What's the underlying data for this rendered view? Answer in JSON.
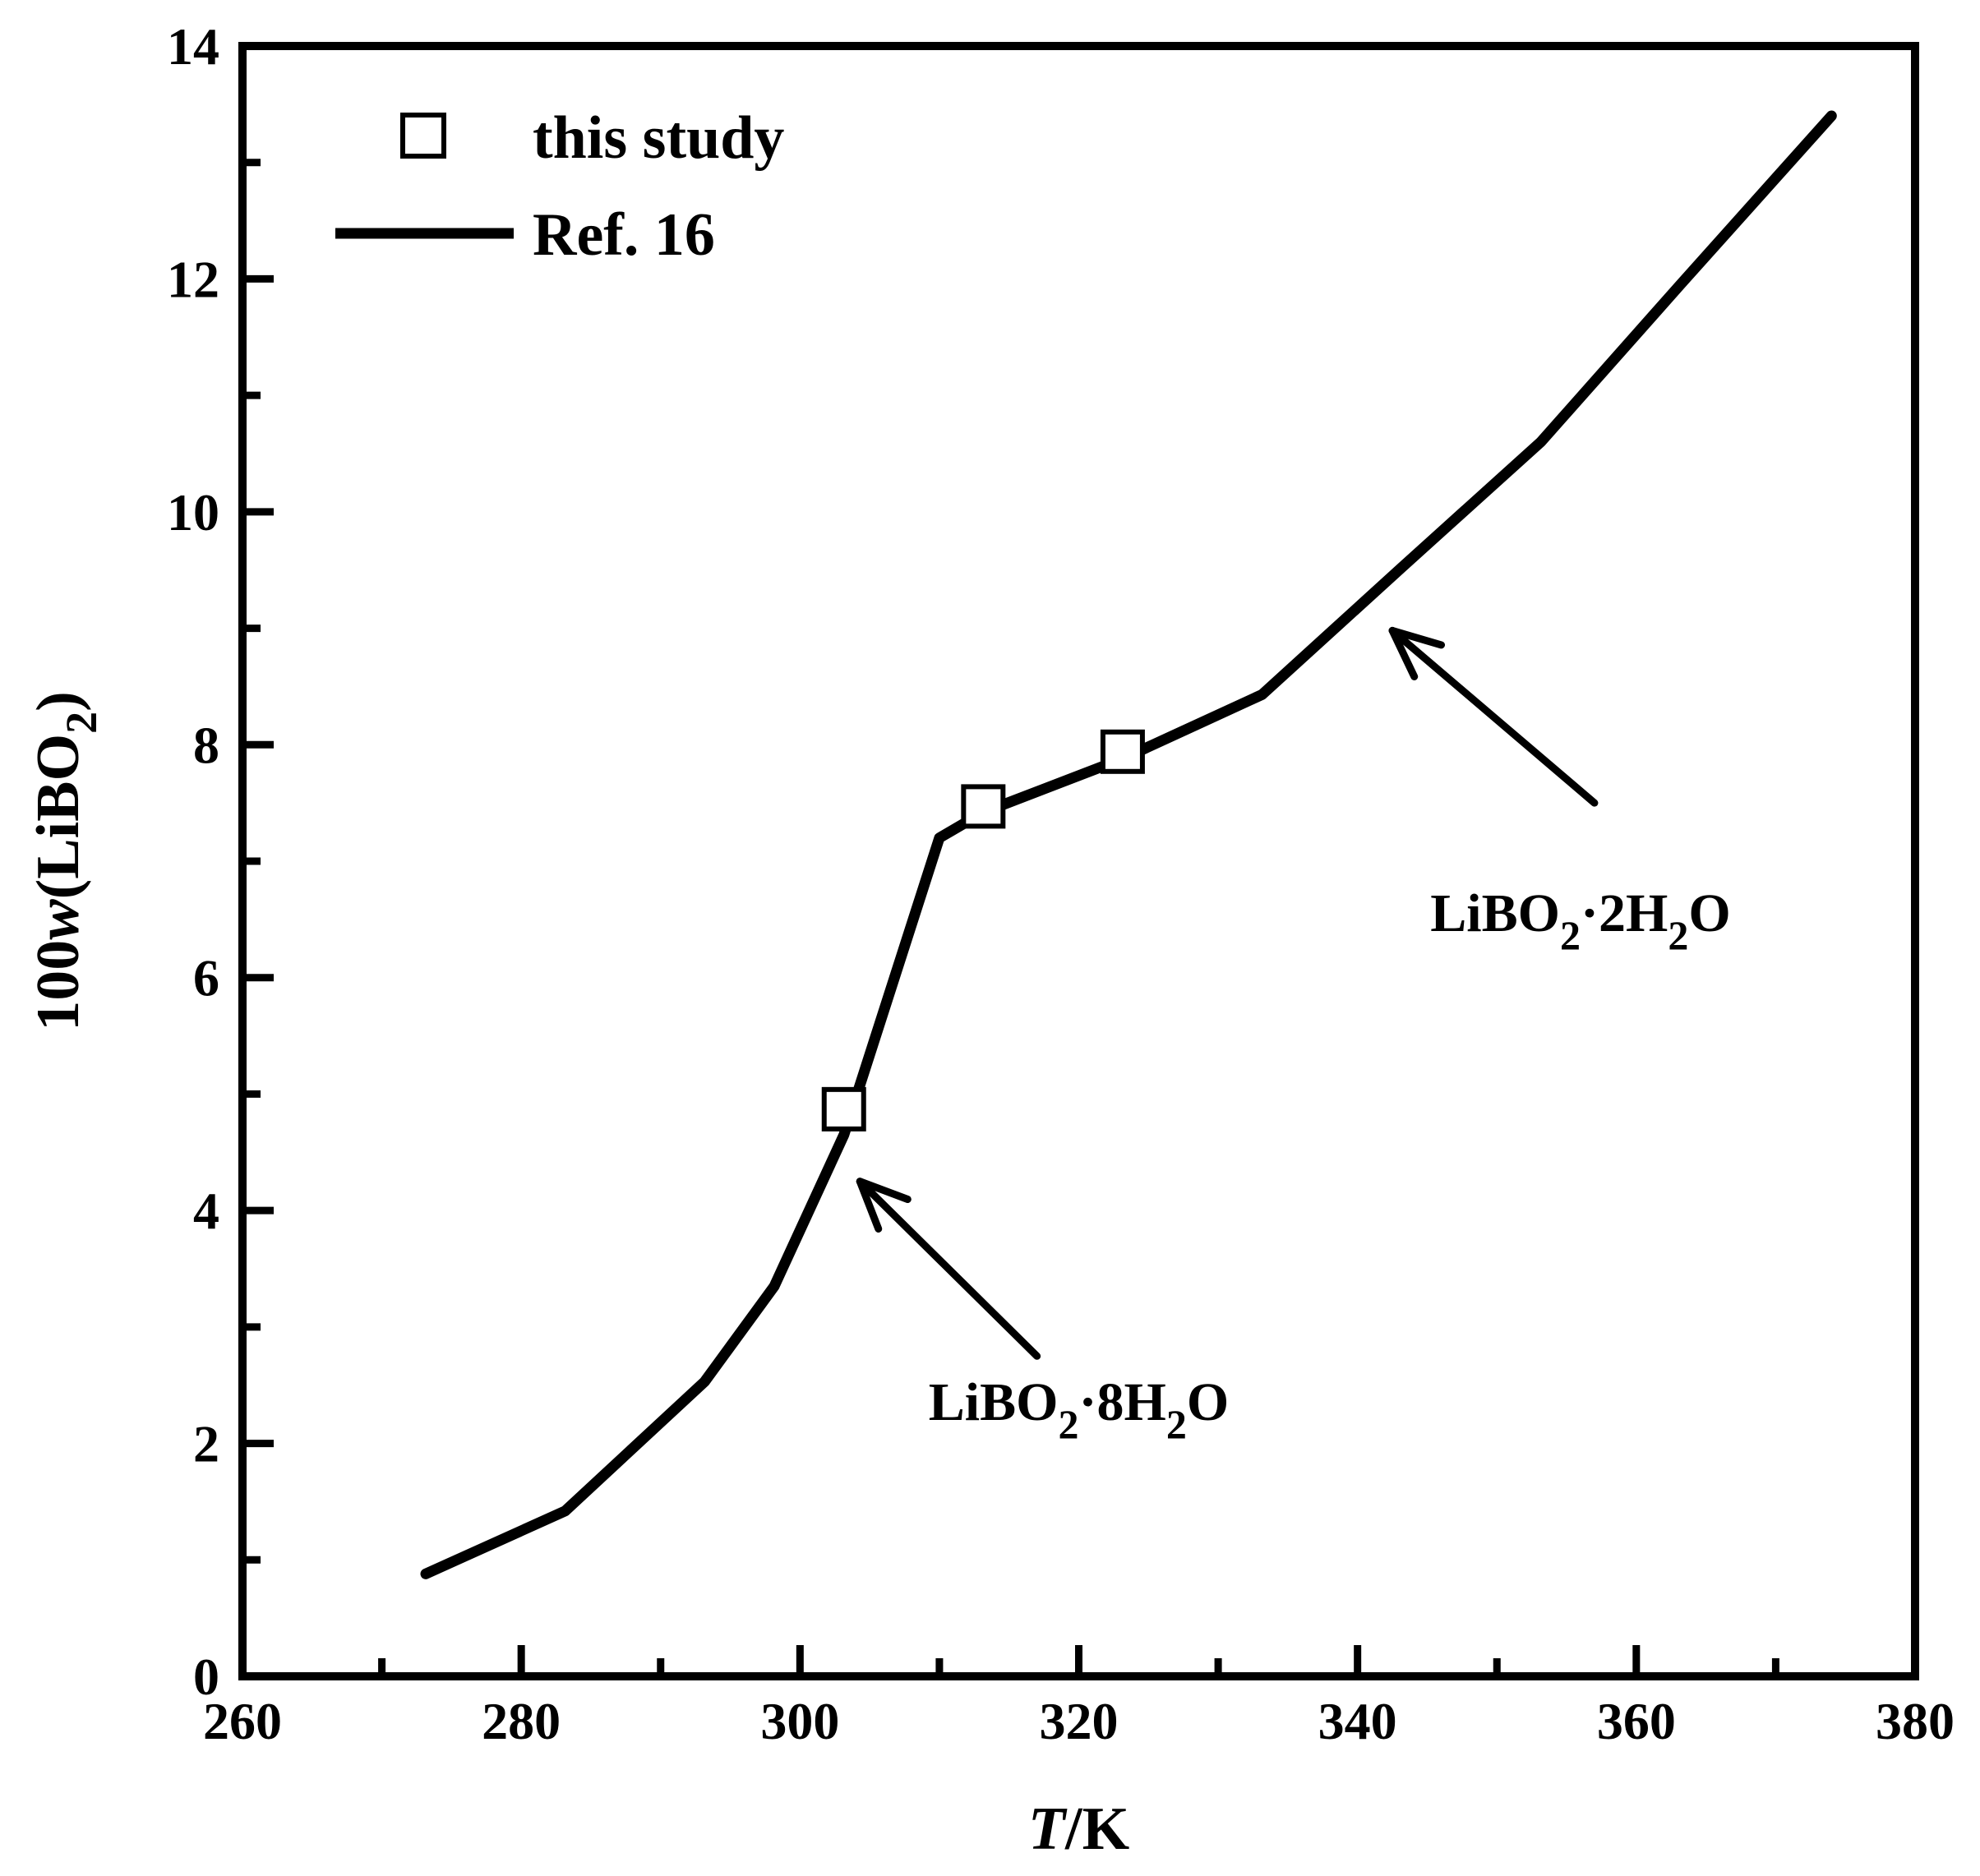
{
  "chart_data": {
    "type": "line",
    "xlabel": {
      "italic": "T",
      "rest": "/K"
    },
    "ylabel": {
      "prefix": "100",
      "italic": "w",
      "open": "(LiBO",
      "sub": "2",
      "close": ")"
    },
    "xlim": [
      260,
      380
    ],
    "ylim": [
      0,
      14
    ],
    "x_major_ticks": [
      260,
      280,
      300,
      320,
      340,
      360,
      380
    ],
    "x_tick_labels": [
      "260",
      "280",
      "300",
      "320",
      "340",
      "360",
      "380"
    ],
    "x_minor_ticks": [
      270,
      290,
      310,
      330,
      350,
      370
    ],
    "y_major_ticks": [
      0,
      2,
      4,
      6,
      8,
      10,
      12,
      14
    ],
    "y_tick_labels": [
      "0",
      "2",
      "4",
      "6",
      "8",
      "10",
      "12",
      "14"
    ],
    "y_minor_ticks": [
      1,
      3,
      5,
      7,
      9,
      11,
      13
    ],
    "grid": false,
    "legend_position": "top-left",
    "series": [
      {
        "name": "this study",
        "kind": "scatter",
        "marker": "open-square",
        "x": [
          303.15,
          313.15,
          323.15
        ],
        "y": [
          4.87,
          7.47,
          7.94
        ]
      },
      {
        "name": "Ref. 16",
        "kind": "line",
        "x": [
          273.15,
          283.15,
          293.15,
          298.15,
          303.15,
          310.0,
          313.15,
          323.15,
          333.15,
          343.15,
          353.15,
          363.15,
          374.0
        ],
        "y": [
          0.88,
          1.42,
          2.53,
          3.35,
          4.65,
          7.2,
          7.42,
          7.88,
          8.43,
          9.52,
          10.6,
          11.95,
          13.4
        ]
      }
    ],
    "annotations": [
      {
        "main": "LiBO",
        "sub1": "2",
        "mid": "·8H",
        "sub2": "2",
        "end": "O",
        "arrow_from": [
          317,
          2.75
        ],
        "arrow_to": [
          304.3,
          4.25
        ],
        "label_anchor": [
          320,
          2.2
        ]
      },
      {
        "main": "LiBO",
        "sub1": "2",
        "mid": "·2H",
        "sub2": "2",
        "end": "O",
        "arrow_from": [
          357,
          7.5
        ],
        "arrow_to": [
          342.5,
          8.98
        ],
        "label_anchor": [
          356,
          6.4
        ]
      }
    ]
  }
}
